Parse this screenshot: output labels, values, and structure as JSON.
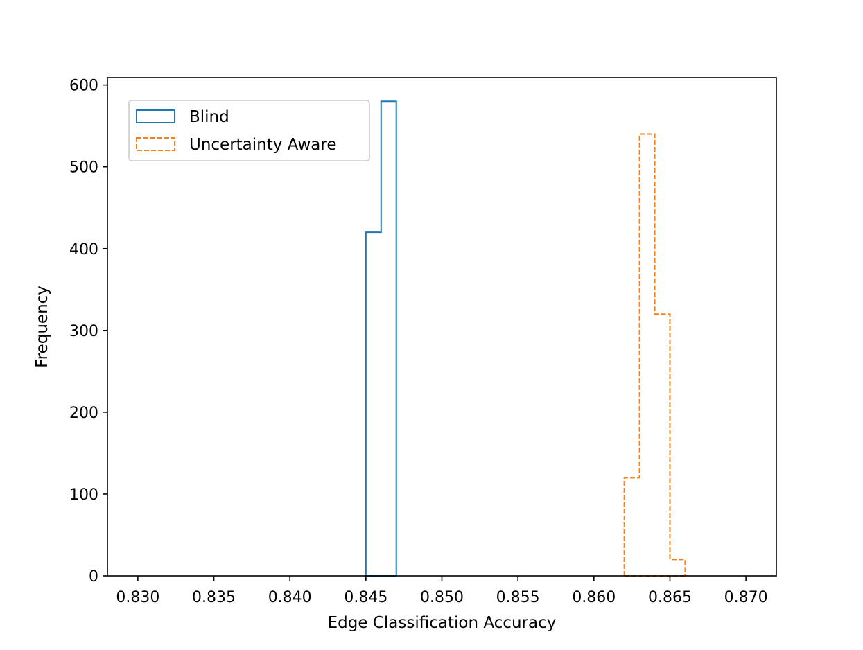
{
  "chart_data": {
    "type": "histogram",
    "title": "",
    "xlabel": "Edge Classification Accuracy",
    "ylabel": "Frequency",
    "xlim": [
      0.828,
      0.872
    ],
    "ylim": [
      0,
      609
    ],
    "xticks": [
      0.83,
      0.835,
      0.84,
      0.845,
      0.85,
      0.855,
      0.86,
      0.865,
      0.87
    ],
    "xtick_labels": [
      "0.830",
      "0.835",
      "0.840",
      "0.845",
      "0.850",
      "0.855",
      "0.860",
      "0.865",
      "0.870"
    ],
    "yticks": [
      0,
      100,
      200,
      300,
      400,
      500,
      600
    ],
    "ytick_labels": [
      "0",
      "100",
      "200",
      "300",
      "400",
      "500",
      "600"
    ],
    "grid": false,
    "legend_position": "top-left",
    "series": [
      {
        "name": "Blind",
        "histtype": "step",
        "linestyle": "solid",
        "color": "#1f77b4",
        "bins": [
          [
            0.845,
            0.846,
            420
          ],
          [
            0.846,
            0.847,
            580
          ]
        ]
      },
      {
        "name": "Uncertainty Aware",
        "histtype": "step",
        "linestyle": "dashed",
        "color": "#ff7f0e",
        "bins": [
          [
            0.862,
            0.863,
            120
          ],
          [
            0.863,
            0.864,
            540
          ],
          [
            0.864,
            0.865,
            320
          ],
          [
            0.865,
            0.866,
            20
          ]
        ]
      }
    ]
  }
}
